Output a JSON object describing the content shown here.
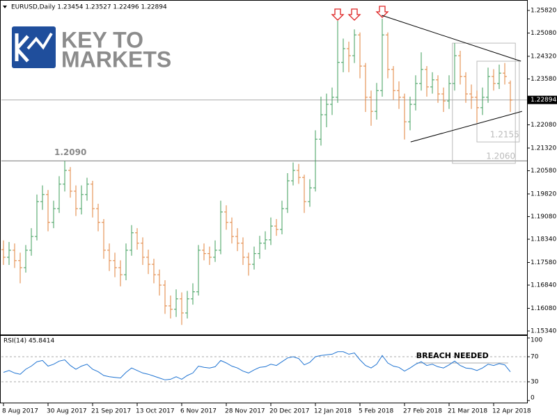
{
  "chart_data": {
    "type": "ohlc",
    "title": "EURUSD,Daily  1.23454 1.23527 1.22496 1.22894",
    "logo": [
      "KEY TO",
      "MARKETS"
    ],
    "categories": [
      "8 Aug 2017",
      null,
      null,
      null,
      null,
      null,
      null,
      null,
      "30 Aug 2017",
      null,
      null,
      null,
      null,
      null,
      null,
      null,
      "21 Sep 2017",
      null,
      null,
      null,
      null,
      null,
      null,
      null,
      "13 Oct 2017",
      null,
      null,
      null,
      null,
      null,
      null,
      null,
      "6 Nov 2017",
      null,
      null,
      null,
      null,
      null,
      null,
      null,
      "28 Nov 2017",
      null,
      null,
      null,
      null,
      null,
      null,
      null,
      "20 Dec 2017",
      null,
      null,
      null,
      null,
      null,
      null,
      null,
      "12 Jan 2018",
      null,
      null,
      null,
      null,
      null,
      null,
      null,
      "5 Feb 2018",
      null,
      null,
      null,
      null,
      null,
      null,
      null,
      "27 Feb 2018",
      null,
      null,
      null,
      null,
      null,
      null,
      null,
      "21 Mar 2018",
      null,
      null,
      null,
      null,
      null,
      null,
      null,
      "12 Apr 2018",
      null,
      null,
      null
    ],
    "open": [
      1.18,
      1.1775,
      1.1798,
      1.1764,
      1.1741,
      1.1798,
      1.1843,
      1.1957,
      1.198,
      1.1889,
      1.1934,
      1.2014,
      1.2059,
      1.1991,
      1.1934,
      1.198,
      1.2014,
      1.1934,
      1.1889,
      1.1798,
      1.1764,
      1.1741,
      1.1718,
      1.1798,
      1.1855,
      1.1821,
      1.1775,
      1.1752,
      1.1718,
      1.1684,
      1.1616,
      1.1605,
      1.1639,
      1.1593,
      1.1639,
      1.1662,
      1.1798,
      1.1787,
      1.1775,
      1.1798,
      1.1923,
      1.1889,
      1.1843,
      1.1821,
      1.1775,
      1.1752,
      1.1787,
      1.1821,
      1.1832,
      1.1877,
      1.1866,
      1.1934,
      1.2025,
      1.2059,
      1.2036,
      1.1957,
      1.2002,
      1.2161,
      1.2241,
      1.2275,
      1.2298,
      1.2412,
      1.2457,
      1.2434,
      1.2502,
      1.24,
      1.2298,
      1.2252,
      1.232,
      1.2502,
      1.2389,
      1.232,
      1.2298,
      1.2218,
      1.2275,
      1.2343,
      1.2389,
      1.2332,
      1.2355,
      1.2309,
      1.2286,
      1.2343,
      1.2434,
      1.2366,
      1.2309,
      1.2298,
      1.2264,
      1.2298,
      1.2366,
      1.2343,
      1.2377,
      1.2345
    ],
    "high": [
      1.183,
      1.1825,
      1.182,
      1.179,
      1.1815,
      1.187,
      1.198,
      1.201,
      1.1995,
      1.196,
      1.204,
      1.209,
      1.207,
      1.201,
      1.201,
      1.2035,
      1.2025,
      1.195,
      1.19,
      1.182,
      1.179,
      1.1765,
      1.182,
      1.188,
      1.187,
      1.184,
      1.18,
      1.177,
      1.1735,
      1.17,
      1.165,
      1.167,
      1.166,
      1.1665,
      1.169,
      1.1815,
      1.182,
      1.181,
      1.183,
      1.196,
      1.1945,
      1.1905,
      1.187,
      1.184,
      1.179,
      1.181,
      1.1845,
      1.186,
      1.1905,
      1.19,
      1.196,
      1.205,
      1.2085,
      1.208,
      1.2045,
      1.203,
      1.219,
      1.23,
      1.231,
      1.233,
      1.2548,
      1.249,
      1.248,
      1.252,
      1.251,
      1.241,
      1.232,
      1.2345,
      1.2555,
      1.251,
      1.24,
      1.235,
      1.231,
      1.23,
      1.237,
      1.2445,
      1.24,
      1.238,
      1.237,
      1.233,
      1.237,
      1.2475,
      1.245,
      1.238,
      1.234,
      1.232,
      1.233,
      1.2395,
      1.239,
      1.2405,
      1.241,
      1.2353
    ],
    "low": [
      1.175,
      1.175,
      1.174,
      1.169,
      1.1725,
      1.178,
      1.183,
      1.193,
      1.186,
      1.187,
      1.192,
      1.199,
      1.197,
      1.191,
      1.1915,
      1.196,
      1.1905,
      1.186,
      1.177,
      1.173,
      1.171,
      1.168,
      1.17,
      1.178,
      1.18,
      1.175,
      1.172,
      1.169,
      1.165,
      1.159,
      1.1575,
      1.158,
      1.1554,
      1.1575,
      1.162,
      1.165,
      1.1765,
      1.175,
      1.176,
      1.1785,
      1.1865,
      1.182,
      1.1795,
      1.175,
      1.1715,
      1.1735,
      1.177,
      1.18,
      1.1815,
      1.1845,
      1.185,
      1.192,
      1.201,
      1.2015,
      1.192,
      1.194,
      1.199,
      1.214,
      1.22,
      1.224,
      1.228,
      1.238,
      1.238,
      1.241,
      1.236,
      1.225,
      1.2205,
      1.2225,
      1.23,
      1.236,
      1.229,
      1.226,
      1.216,
      1.219,
      1.2255,
      1.232,
      1.23,
      1.231,
      1.228,
      1.225,
      1.226,
      1.232,
      1.234,
      1.228,
      1.226,
      1.2215,
      1.224,
      1.228,
      1.232,
      1.2325,
      1.234,
      1.225
    ],
    "close": [
      1.1775,
      1.1798,
      1.1764,
      1.1741,
      1.1798,
      1.1843,
      1.1957,
      1.198,
      1.1889,
      1.1934,
      1.2014,
      1.2059,
      1.1991,
      1.1934,
      1.198,
      1.2014,
      1.1934,
      1.1889,
      1.1798,
      1.1764,
      1.1741,
      1.1718,
      1.1798,
      1.1855,
      1.1821,
      1.1775,
      1.1752,
      1.1718,
      1.1684,
      1.1616,
      1.1605,
      1.1639,
      1.1593,
      1.1639,
      1.1662,
      1.1798,
      1.1787,
      1.1775,
      1.1798,
      1.1923,
      1.1889,
      1.1843,
      1.1821,
      1.1775,
      1.1752,
      1.1787,
      1.1821,
      1.1832,
      1.1877,
      1.1866,
      1.1934,
      1.2025,
      1.2059,
      1.2036,
      1.1957,
      1.2002,
      1.2161,
      1.2241,
      1.2275,
      1.2298,
      1.2412,
      1.2457,
      1.2434,
      1.2502,
      1.24,
      1.2298,
      1.2252,
      1.232,
      1.2502,
      1.2389,
      1.232,
      1.2298,
      1.2218,
      1.2275,
      1.2343,
      1.2389,
      1.2332,
      1.2355,
      1.2309,
      1.2286,
      1.2343,
      1.2434,
      1.2366,
      1.2309,
      1.2298,
      1.2264,
      1.2298,
      1.2366,
      1.2343,
      1.2377,
      1.2366,
      1.2289
    ],
    "up_color": "#3c9c5a",
    "down_color": "#e0803a",
    "ylim": [
      1.15226,
      1.26047
    ],
    "yticks": [
      {
        "value": 1.2582,
        "label": "1.25820"
      },
      {
        "value": 1.2508,
        "label": "1.25080"
      },
      {
        "value": 1.2432,
        "label": "1.24320"
      },
      {
        "value": 1.2358,
        "label": "1.23580"
      },
      {
        "value": 1.2208,
        "label": "1.22080"
      },
      {
        "value": 1.2132,
        "label": "1.21320"
      },
      {
        "value": 1.2058,
        "label": "1.20580"
      },
      {
        "value": 1.1982,
        "label": "1.19820"
      },
      {
        "value": 1.1908,
        "label": "1.19080"
      },
      {
        "value": 1.1834,
        "label": "1.18340"
      },
      {
        "value": 1.1758,
        "label": "1.17580"
      },
      {
        "value": 1.1684,
        "label": "1.16840"
      },
      {
        "value": 1.1608,
        "label": "1.16080"
      },
      {
        "value": 1.1534,
        "label": "1.15340"
      }
    ],
    "current_price": 1.22894,
    "hline": {
      "value": 1.209,
      "label": "1.2090"
    },
    "trendlines": [
      {
        "x": [
          67.9,
          92.9
        ],
        "y": [
          1.2566,
          1.2416
        ]
      },
      {
        "x": [
          73.1,
          93.1
        ],
        "y": [
          1.2152,
          1.2252
        ]
      }
    ],
    "boxes": [
      {
        "x": [
          80.6,
          91.9
        ],
        "y": [
          1.2082,
          1.2475
        ],
        "label": "1.2060"
      },
      {
        "x": [
          85,
          92.6
        ],
        "y": [
          1.2152,
          1.2416
        ],
        "label": "1.2155"
      }
    ],
    "rsi": {
      "title": "RSI(14) 45.8414",
      "color": "#1e73d2",
      "values": [
        45,
        48,
        44,
        42,
        50,
        55,
        62,
        64,
        55,
        58,
        63,
        65,
        56,
        50,
        55,
        58,
        50,
        46,
        40,
        38,
        37,
        36,
        45,
        52,
        48,
        44,
        42,
        39,
        36,
        33,
        34,
        38,
        34,
        40,
        44,
        55,
        53,
        52,
        54,
        64,
        60,
        55,
        52,
        47,
        44,
        49,
        53,
        54,
        58,
        56,
        62,
        68,
        70,
        67,
        57,
        61,
        70,
        72,
        73,
        74,
        78,
        78,
        74,
        76,
        65,
        56,
        52,
        58,
        72,
        60,
        55,
        53,
        47,
        52,
        58,
        62,
        56,
        58,
        54,
        52,
        57,
        63,
        56,
        52,
        51,
        48,
        52,
        58,
        56,
        59,
        57,
        45.8414
      ],
      "ylim": [
        0,
        100
      ],
      "yticks": [
        100,
        70,
        30,
        0
      ],
      "levels": [
        70,
        30
      ],
      "target": {
        "value": 60,
        "x": [
          74.1,
          90.6
        ],
        "label": "BREACH NEEDED"
      }
    }
  }
}
